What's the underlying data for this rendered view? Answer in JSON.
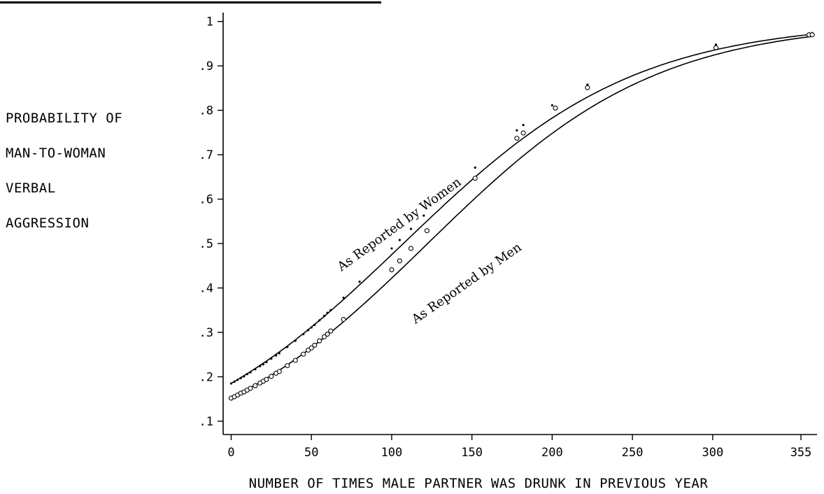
{
  "chart_data": {
    "type": "line",
    "title": "",
    "ylabel_lines": [
      "PROBABILITY OF",
      "MAN-TO-WOMAN",
      "VERBAL",
      "AGGRESSION"
    ],
    "xlabel": "NUMBER OF TIMES MALE PARTNER WAS DRUNK IN PREVIOUS YEAR",
    "xlim": [
      -5,
      365
    ],
    "ylim": [
      0.07,
      1.02
    ],
    "x_ticks": [
      0,
      50,
      100,
      150,
      200,
      250,
      300,
      355
    ],
    "x_tick_labels": [
      "0",
      "50",
      "100",
      "150",
      "200",
      "250",
      "300",
      "355"
    ],
    "y_ticks": [
      0.1,
      0.2,
      0.3,
      0.4,
      0.5,
      0.6,
      0.7,
      0.8,
      0.9,
      1.0
    ],
    "y_tick_labels": [
      ".1",
      ".2",
      ".3",
      ".4",
      ".5",
      ".6",
      ".7",
      ".8",
      ".9",
      "1"
    ],
    "grid": false,
    "series": [
      {
        "name": "As Reported by Women",
        "marker": "dot",
        "curve": {
          "intercept": -1.4814,
          "slope": 0.01381
        },
        "x": [
          0,
          2,
          4,
          6,
          8,
          10,
          12,
          15,
          18,
          20,
          22,
          25,
          28,
          30,
          35,
          40,
          45,
          48,
          50,
          52,
          55,
          58,
          60,
          62,
          70,
          80,
          100,
          105,
          112,
          120,
          152,
          178,
          182,
          200,
          222,
          302,
          360,
          362
        ],
        "y": [
          0.185,
          0.189,
          0.193,
          0.197,
          0.201,
          0.206,
          0.21,
          0.217,
          0.224,
          0.228,
          0.233,
          0.241,
          0.248,
          0.253,
          0.267,
          0.281,
          0.296,
          0.305,
          0.311,
          0.317,
          0.327,
          0.337,
          0.344,
          0.35,
          0.378,
          0.414,
          0.489,
          0.508,
          0.533,
          0.563,
          0.671,
          0.755,
          0.767,
          0.811,
          0.858,
          0.948,
          0.973,
          0.974
        ]
      },
      {
        "name": "As Reported by Men",
        "marker": "circle",
        "curve": {
          "intercept": -1.7176,
          "slope": 0.01403
        },
        "x": [
          0,
          2,
          4,
          6,
          8,
          10,
          12,
          15,
          18,
          20,
          22,
          25,
          28,
          30,
          35,
          40,
          45,
          48,
          50,
          52,
          55,
          58,
          60,
          62,
          70,
          100,
          105,
          112,
          122,
          152,
          178,
          182,
          202,
          222,
          302,
          360,
          362
        ],
        "y": [
          0.152,
          0.155,
          0.159,
          0.163,
          0.166,
          0.17,
          0.174,
          0.18,
          0.186,
          0.19,
          0.194,
          0.201,
          0.208,
          0.212,
          0.225,
          0.237,
          0.251,
          0.26,
          0.265,
          0.271,
          0.281,
          0.29,
          0.296,
          0.303,
          0.329,
          0.441,
          0.461,
          0.489,
          0.529,
          0.647,
          0.737,
          0.749,
          0.805,
          0.851,
          0.941,
          0.97,
          0.97
        ]
      }
    ]
  }
}
